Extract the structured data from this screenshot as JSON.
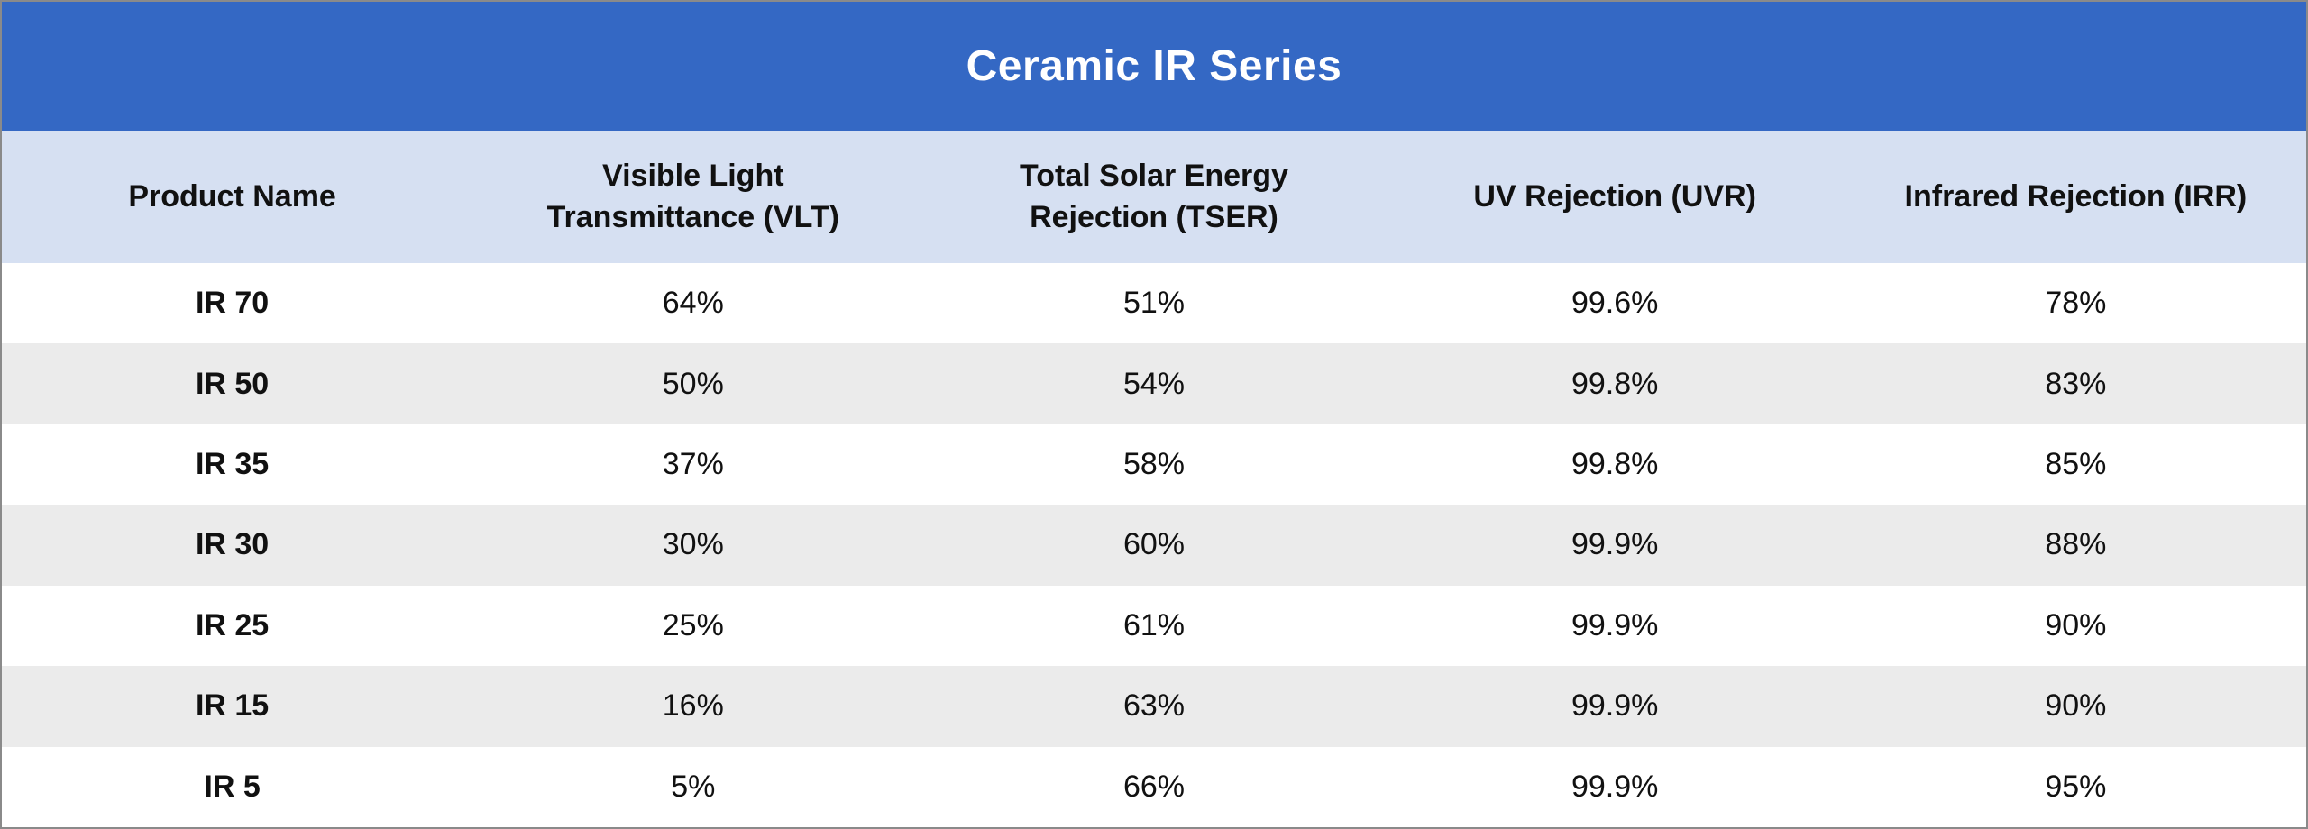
{
  "chart_data": {
    "type": "table",
    "title": "Ceramic IR Series",
    "columns": [
      "Product Name",
      "Visible Light\nTransmittance (VLT)",
      "Total Solar Energy\nRejection (TSER)",
      "UV Rejection (UVR)",
      "Infrared Rejection (IRR)"
    ],
    "rows": [
      [
        "IR 70",
        "64%",
        "51%",
        "99.6%",
        "78%"
      ],
      [
        "IR 50",
        "50%",
        "54%",
        "99.8%",
        "83%"
      ],
      [
        "IR 35",
        "37%",
        "58%",
        "99.8%",
        "85%"
      ],
      [
        "IR 30",
        "30%",
        "60%",
        "99.9%",
        "88%"
      ],
      [
        "IR 25",
        "25%",
        "61%",
        "99.9%",
        "90%"
      ],
      [
        "IR 15",
        "16%",
        "63%",
        "99.9%",
        "90%"
      ],
      [
        "IR 5",
        "5%",
        "66%",
        "99.9%",
        "95%"
      ]
    ],
    "legend": null,
    "grid": "horizontal zebra stripes, no vertical dividers"
  },
  "colors": {
    "title_bg": "#3468C4",
    "title_text": "#FFFFFF",
    "header_bg": "#D6E0F2",
    "row_bg": "#FFFFFF",
    "row_alt_bg": "#EBEBEB",
    "text": "#111111",
    "border": "#8A8A8A"
  }
}
